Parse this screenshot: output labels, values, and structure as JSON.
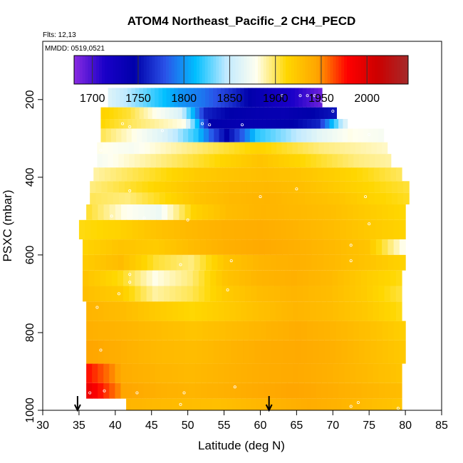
{
  "chart_data": {
    "type": "heatmap",
    "title": "ATOM4 Northeast_Pacific_2 CH4_PECD",
    "flights_label": "Flts: 12,13",
    "mmdd_label": "MMDD: 0519,0521",
    "xlabel": "Latitude (deg N)",
    "ylabel": "PSXC (mbar)",
    "xlim": [
      30,
      85
    ],
    "ylim": [
      1000,
      50
    ],
    "y_reversed": true,
    "xticks": [
      30,
      35,
      40,
      45,
      50,
      55,
      60,
      65,
      70,
      75,
      80,
      85
    ],
    "yticks": [
      200,
      400,
      600,
      800,
      1000
    ],
    "colorbar": {
      "min": 1680,
      "max": 2045,
      "ticks": [
        1700,
        1750,
        1800,
        1850,
        1900,
        1950,
        2000
      ],
      "colors": [
        "#8a2be2",
        "#1a00c8",
        "#0000aa",
        "#2a52e8",
        "#00bfff",
        "#bfe9ff",
        "#fffff0",
        "#ffd700",
        "#ffa500",
        "#ff0000",
        "#cc0000",
        "#a52a2a"
      ]
    },
    "arrows_lat": [
      34.8,
      61.2
    ],
    "profile_rows": [
      {
        "p_top": 170,
        "p_bot": 220,
        "lat_start": 39,
        "lat_end": 68.5,
        "values": [
          1860,
          1840,
          1820,
          1800,
          1790,
          1770,
          1745,
          1725,
          1710,
          1690
        ]
      },
      {
        "p_top": 220,
        "p_bot": 250,
        "lat_start": 38,
        "lat_end": 70.5,
        "values": [
          1915,
          1905,
          1880,
          1860,
          1760,
          1745,
          1740,
          1738,
          1745,
          1755
        ]
      },
      {
        "p_top": 250,
        "p_bot": 275,
        "lat_start": 38,
        "lat_end": 72,
        "values": [
          1912,
          1900,
          1890,
          1880,
          1745,
          1740,
          1740,
          1745,
          1760,
          1860
        ]
      },
      {
        "p_top": 275,
        "p_bot": 310,
        "lat_start": 38,
        "lat_end": 77,
        "values": [
          1900,
          1880,
          1860,
          1820,
          1745,
          1820,
          1840,
          1865,
          1880,
          1875
        ]
      },
      {
        "p_top": 310,
        "p_bot": 340,
        "lat_start": 37.5,
        "lat_end": 77.5,
        "values": [
          1880,
          1875,
          1885,
          1895,
          1905,
          1915,
          1905,
          1895,
          1890,
          1885
        ]
      },
      {
        "p_top": 340,
        "p_bot": 375,
        "lat_start": 37.5,
        "lat_end": 78,
        "values": [
          1875,
          1885,
          1895,
          1905,
          1915,
          1925,
          1915,
          1905,
          1895,
          1890
        ]
      },
      {
        "p_top": 375,
        "p_bot": 410,
        "lat_start": 37,
        "lat_end": 79.5,
        "values": [
          1890,
          1900,
          1910,
          1920,
          1925,
          1928,
          1925,
          1918,
          1910,
          1900
        ]
      },
      {
        "p_top": 410,
        "p_bot": 440,
        "lat_start": 36.5,
        "lat_end": 80.5,
        "values": [
          1895,
          1905,
          1915,
          1925,
          1930,
          1932,
          1928,
          1920,
          1912,
          1905
        ]
      },
      {
        "p_top": 440,
        "p_bot": 470,
        "lat_start": 36.5,
        "lat_end": 80.5,
        "values": [
          1900,
          1895,
          1910,
          1925,
          1932,
          1935,
          1930,
          1925,
          1915,
          1908
        ]
      },
      {
        "p_top": 470,
        "p_bot": 510,
        "lat_start": 36,
        "lat_end": 80,
        "values": [
          1905,
          1880,
          1870,
          1915,
          1930,
          1935,
          1932,
          1928,
          1920,
          1912
        ]
      },
      {
        "p_top": 510,
        "p_bot": 560,
        "lat_start": 35,
        "lat_end": 80,
        "values": [
          1910,
          1915,
          1925,
          1932,
          1938,
          1940,
          1936,
          1930,
          1922,
          1915
        ]
      },
      {
        "p_top": 560,
        "p_bot": 600,
        "lat_start": 35.5,
        "lat_end": 80,
        "values": [
          1915,
          1925,
          1920,
          1930,
          1938,
          1942,
          1938,
          1932,
          1925,
          1880
        ]
      },
      {
        "p_top": 600,
        "p_bot": 640,
        "lat_start": 35.5,
        "lat_end": 80,
        "values": [
          1920,
          1930,
          1905,
          1895,
          1925,
          1935,
          1938,
          1932,
          1925,
          1915
        ]
      },
      {
        "p_top": 640,
        "p_bot": 680,
        "lat_start": 35.5,
        "lat_end": 79.5,
        "values": [
          1925,
          1910,
          1880,
          1895,
          1925,
          1935,
          1938,
          1932,
          1920,
          1910
        ]
      },
      {
        "p_top": 680,
        "p_bot": 720,
        "lat_start": 35.5,
        "lat_end": 79.5,
        "values": [
          1928,
          1920,
          1890,
          1900,
          1920,
          1930,
          1935,
          1930,
          1920,
          1905
        ]
      },
      {
        "p_top": 720,
        "p_bot": 770,
        "lat_start": 36,
        "lat_end": 79.5,
        "values": [
          1935,
          1930,
          1920,
          1912,
          1920,
          1928,
          1935,
          1930,
          1922,
          1910
        ]
      },
      {
        "p_top": 770,
        "p_bot": 820,
        "lat_start": 36,
        "lat_end": 80,
        "values": [
          1938,
          1935,
          1930,
          1925,
          1930,
          1935,
          1940,
          1935,
          1928,
          1918
        ]
      },
      {
        "p_top": 820,
        "p_bot": 880,
        "lat_start": 36,
        "lat_end": 80,
        "values": [
          1945,
          1938,
          1932,
          1930,
          1935,
          1940,
          1942,
          1938,
          1930,
          1922
        ]
      },
      {
        "p_top": 880,
        "p_bot": 930,
        "lat_start": 36,
        "lat_end": 79.5,
        "values": [
          1975,
          1940,
          1935,
          1932,
          1936,
          1940,
          1942,
          1938,
          1932,
          1925
        ]
      },
      {
        "p_top": 930,
        "p_bot": 970,
        "lat_start": 36,
        "lat_end": 79.5,
        "values": [
          1990,
          1945,
          1938,
          1935,
          1938,
          1942,
          1945,
          1940,
          1935,
          1930
        ]
      },
      {
        "p_top": 970,
        "p_bot": 1000,
        "lat_start": 41.5,
        "lat_end": 79.5,
        "values": [
          1935,
          1932,
          1930,
          1928,
          1932,
          1936,
          1940,
          1936,
          1930,
          1925
        ]
      }
    ],
    "sample_points": [
      [
        65.5,
        190
      ],
      [
        66.5,
        190
      ],
      [
        67.5,
        190
      ],
      [
        63,
        190
      ],
      [
        68.5,
        205
      ],
      [
        69,
        215
      ],
      [
        70,
        230
      ],
      [
        52,
        262
      ],
      [
        53,
        265
      ],
      [
        57.5,
        265
      ],
      [
        41,
        262
      ],
      [
        42,
        270
      ],
      [
        75,
        290
      ],
      [
        38,
        330
      ],
      [
        46.5,
        280
      ],
      [
        65,
        430
      ],
      [
        60,
        450
      ],
      [
        42,
        435
      ],
      [
        39.5,
        500
      ],
      [
        44,
        505
      ],
      [
        50,
        510
      ],
      [
        74.5,
        450
      ],
      [
        75,
        520
      ],
      [
        72.5,
        575
      ],
      [
        49,
        625
      ],
      [
        56,
        615
      ],
      [
        72.5,
        615
      ],
      [
        42,
        650
      ],
      [
        40.5,
        700
      ],
      [
        42,
        670
      ],
      [
        55.5,
        690
      ],
      [
        37.5,
        735
      ],
      [
        38,
        845
      ],
      [
        56.5,
        940
      ],
      [
        43,
        955
      ],
      [
        49.5,
        955
      ],
      [
        49,
        985
      ],
      [
        73.5,
        980
      ],
      [
        72.5,
        990
      ],
      [
        79,
        995
      ],
      [
        36.5,
        955
      ],
      [
        38.5,
        950
      ]
    ]
  }
}
